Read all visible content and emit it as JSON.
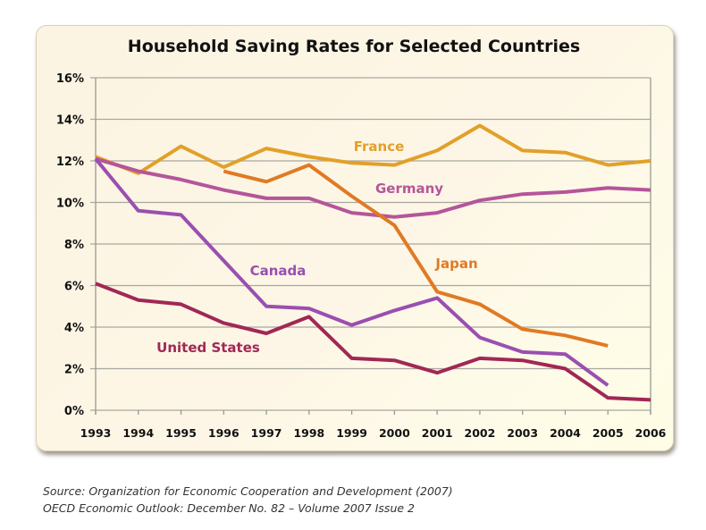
{
  "chart_data": {
    "type": "line",
    "title": "Household Saving Rates for Selected Countries",
    "xlabel": "",
    "ylabel": "",
    "x": [
      "1993",
      "1994",
      "1995",
      "1996",
      "1997",
      "1998",
      "1999",
      "2000",
      "2001",
      "2002",
      "2003",
      "2004",
      "2005",
      "2006"
    ],
    "yticks": [
      "0%",
      "2%",
      "4%",
      "6%",
      "8%",
      "10%",
      "12%",
      "14%",
      "16%"
    ],
    "ylim": [
      0,
      16
    ],
    "grid": true,
    "legend": "inline labels",
    "series": [
      {
        "name": "France",
        "color": "#e2a02a",
        "values": [
          12.2,
          11.4,
          12.7,
          11.7,
          12.6,
          12.2,
          11.9,
          11.8,
          12.5,
          13.7,
          12.5,
          12.4,
          11.8,
          12.0
        ]
      },
      {
        "name": "Germany",
        "color": "#b5559a",
        "values": [
          12.1,
          11.5,
          11.1,
          10.6,
          10.2,
          10.2,
          9.5,
          9.3,
          9.5,
          10.1,
          10.4,
          10.5,
          10.7,
          10.6
        ]
      },
      {
        "name": "Japan",
        "color": "#e07a24",
        "values": [
          null,
          null,
          null,
          11.5,
          11.0,
          11.8,
          10.3,
          8.9,
          5.7,
          5.1,
          3.9,
          3.6,
          3.1,
          null
        ]
      },
      {
        "name": "Canada",
        "color": "#9a4fb0",
        "values": [
          12.1,
          9.6,
          9.4,
          7.2,
          5.0,
          4.9,
          4.1,
          4.8,
          5.4,
          3.5,
          2.8,
          2.7,
          1.2,
          null
        ]
      },
      {
        "name": "United States",
        "color": "#a02855",
        "values": [
          6.1,
          5.3,
          5.1,
          4.2,
          3.7,
          4.5,
          2.5,
          2.4,
          1.8,
          2.5,
          2.4,
          2.0,
          0.6,
          0.5
        ]
      }
    ],
    "annotations": [
      "France",
      "Germany",
      "Japan",
      "Canada",
      "United States"
    ]
  },
  "source": {
    "line1": "Source: Organization for Economic Cooperation and Development (2007)",
    "line2": "OECD Economic Outlook: December No. 82 – Volume 2007 Issue 2"
  }
}
